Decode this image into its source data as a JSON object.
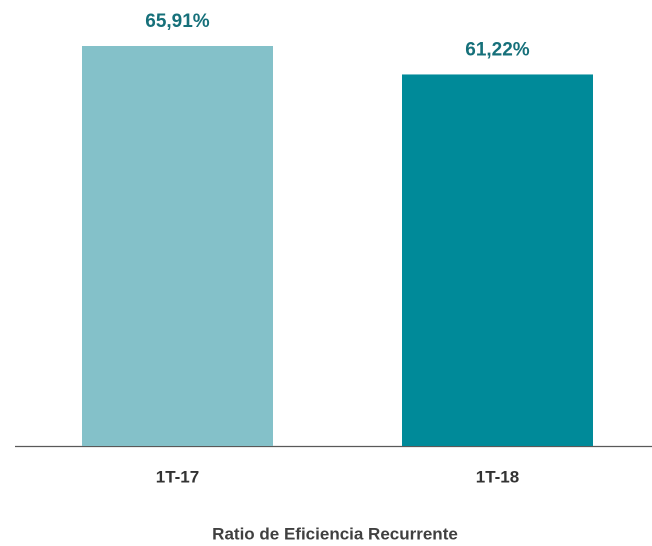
{
  "chart_data": {
    "type": "bar",
    "title": "Ratio de Eficiencia Recurrente",
    "categories": [
      "1T-17",
      "1T-18"
    ],
    "values": [
      65.91,
      61.22
    ],
    "value_labels": [
      "65,91%",
      "61,22%"
    ],
    "colors": [
      "#84c1c9",
      "#008a99"
    ]
  }
}
